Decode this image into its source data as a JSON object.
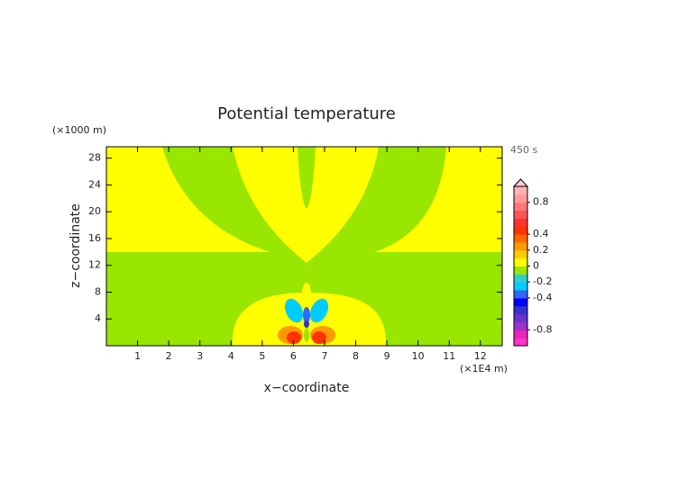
{
  "chart_data": {
    "type": "contour",
    "title": "Potential temperature",
    "x_label": "x−coordinate",
    "y_label": "z−coordinate",
    "x_unit": "(×1E4 m)",
    "y_unit": "(×1000 m)",
    "time_label": "450 s",
    "xlim": [
      0,
      12.7
    ],
    "xticks": [
      1,
      2,
      3,
      4,
      5,
      6,
      7,
      8,
      9,
      10,
      11,
      12
    ],
    "ylim": [
      0,
      29.7
    ],
    "yticks": [
      4,
      8,
      12,
      16,
      20,
      24,
      28
    ],
    "colorbar": {
      "clim": [
        -1,
        1
      ],
      "ticks": [
        0.8,
        0.4,
        0.2,
        0,
        -0.2,
        -0.4,
        -0.8
      ],
      "colors": [
        "#ff33cc",
        "#ee22bb",
        "#9933cc",
        "#6633cc",
        "#3333cc",
        "#0000ff",
        "#3366ff",
        "#00ccff",
        "#33cccc",
        "#99e600",
        "#ffff00",
        "#ffcc00",
        "#ff9900",
        "#ff6600",
        "#ff3300",
        "#ff3333",
        "#ff5555",
        "#ff7777",
        "#ff9999",
        "#ffb3b3"
      ]
    }
  }
}
